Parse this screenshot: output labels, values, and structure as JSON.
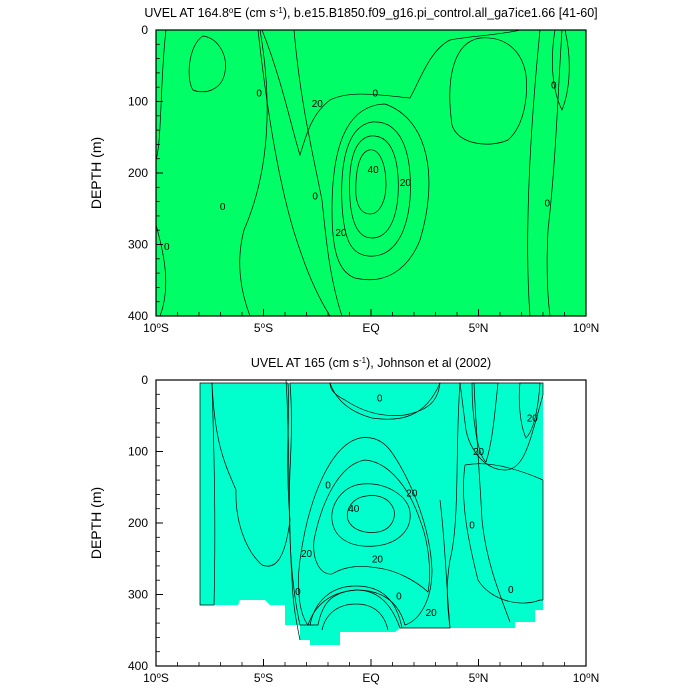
{
  "chart_data": [
    {
      "type": "contour",
      "title_main": "UVEL AT 164.8",
      "title_deg": "o",
      "title_mid": "E (cm s",
      "title_sup": "-1",
      "title_tail": "), b.e15.B1850.f09_g16.pi_control.all_ga7ice1.66 [41-60]",
      "ylabel": "DEPTH (m)",
      "xlim": [
        -10,
        10
      ],
      "ylim": [
        400,
        0
      ],
      "x_ticks": [
        {
          "num": "10",
          "sup": "o",
          "suf": "S",
          "value": -10
        },
        {
          "num": "5",
          "sup": "o",
          "suf": "S",
          "value": -5
        },
        {
          "num": "",
          "sup": "",
          "suf": "EQ",
          "value": 0
        },
        {
          "num": "5",
          "sup": "o",
          "suf": "N",
          "value": 5
        },
        {
          "num": "10",
          "sup": "o",
          "suf": "N",
          "value": 10
        }
      ],
      "y_ticks": [
        0,
        100,
        200,
        300,
        400
      ],
      "levels": [
        -10,
        0,
        10,
        20,
        30,
        40,
        50
      ],
      "colors": [
        "#00ffff",
        "#00ffcc",
        "#00ff66",
        "#66ff00",
        "#ffff00",
        "#ffcc33",
        "#ffa040"
      ],
      "labels": [
        {
          "text": "0",
          "x": -5.2,
          "y": 88
        },
        {
          "text": "20",
          "x": -2.5,
          "y": 103
        },
        {
          "text": "0",
          "x": 0.2,
          "y": 88
        },
        {
          "text": "40",
          "x": 0.1,
          "y": 195
        },
        {
          "text": "20",
          "x": 1.6,
          "y": 213
        },
        {
          "text": "0",
          "x": -2.6,
          "y": 232
        },
        {
          "text": "20",
          "x": -1.4,
          "y": 283
        },
        {
          "text": "0",
          "x": -6.9,
          "y": 247
        },
        {
          "text": "0",
          "x": -9.5,
          "y": 303
        },
        {
          "text": "0",
          "x": 8.2,
          "y": 242
        },
        {
          "text": "0",
          "x": 8.5,
          "y": 77
        }
      ]
    },
    {
      "type": "contour",
      "title_main": "UVEL AT 165 (cm s",
      "title_sup": "-1",
      "title_tail": "), Johnson et al (2002)",
      "ylabel": "DEPTH (m)",
      "xlim": [
        -10,
        10
      ],
      "ylim": [
        400,
        0
      ],
      "x_ticks": [
        {
          "num": "10",
          "sup": "o",
          "suf": "S",
          "value": -10
        },
        {
          "num": "5",
          "sup": "o",
          "suf": "S",
          "value": -5
        },
        {
          "num": "",
          "sup": "",
          "suf": "EQ",
          "value": 0
        },
        {
          "num": "5",
          "sup": "o",
          "suf": "N",
          "value": 5
        },
        {
          "num": "10",
          "sup": "o",
          "suf": "N",
          "value": 10
        }
      ],
      "y_ticks": [
        0,
        100,
        200,
        300,
        400
      ],
      "levels": [
        -10,
        0,
        10,
        20,
        30,
        40,
        50
      ],
      "colors": [
        "#00ffff",
        "#00ffcc",
        "#00ff66",
        "#66ff00",
        "#ffff00",
        "#ffcc33",
        "#ffa040"
      ],
      "labels": [
        {
          "text": "0",
          "x": 0.4,
          "y": 25
        },
        {
          "text": "20",
          "x": 7.5,
          "y": 53
        },
        {
          "text": "20",
          "x": 5.0,
          "y": 100
        },
        {
          "text": "0",
          "x": -2.0,
          "y": 147
        },
        {
          "text": "20",
          "x": 1.9,
          "y": 158
        },
        {
          "text": "40",
          "x": -0.8,
          "y": 180
        },
        {
          "text": "0",
          "x": 4.7,
          "y": 203
        },
        {
          "text": "20",
          "x": -3.0,
          "y": 243
        },
        {
          "text": "20",
          "x": 0.3,
          "y": 250
        },
        {
          "text": "0",
          "x": -3.4,
          "y": 296
        },
        {
          "text": "0",
          "x": 1.3,
          "y": 302
        },
        {
          "text": "0",
          "x": 6.5,
          "y": 293
        },
        {
          "text": "20",
          "x": 2.8,
          "y": 325
        }
      ]
    }
  ]
}
